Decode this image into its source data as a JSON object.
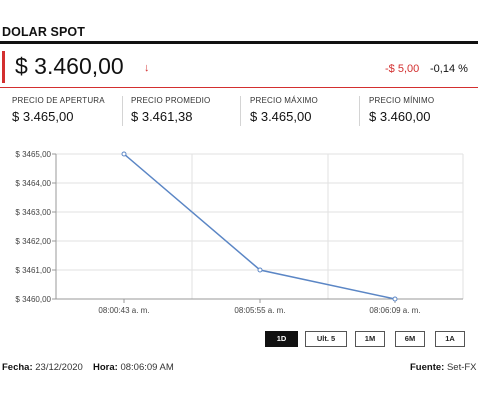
{
  "header": {
    "title": "DOLAR SPOT"
  },
  "quote": {
    "price": "$ 3.460,00",
    "arrow": "↓",
    "change": "-$ 5,00",
    "change_pct": "-0,14 %"
  },
  "stats": [
    {
      "label": "PRECIO DE APERTURA",
      "value": "$ 3.465,00"
    },
    {
      "label": "PRECIO PROMEDIO",
      "value": "$ 3.461,38"
    },
    {
      "label": "PRECIO MÁXIMO",
      "value": "$ 3.465,00"
    },
    {
      "label": "PRECIO MÍNIMO",
      "value": "$ 3.460,00"
    }
  ],
  "chart_data": {
    "type": "line",
    "x": [
      "08:00:43 a. m.",
      "08:05:55 a. m.",
      "08:06:09 a. m."
    ],
    "y": [
      3465.0,
      3461.0,
      3460.0
    ],
    "x_tick_labels": [
      "08:00:43 a. m.",
      "08:05:55 a. m.",
      "08:06:09 a. m."
    ],
    "y_tick_labels": [
      "$ 3465,00",
      "$ 3464,00",
      "$ 3463,00",
      "$ 3462,00",
      "$ 3461,00",
      "$ 3460,00"
    ],
    "ylim": [
      3460,
      3465
    ],
    "grid": true,
    "line_color": "#5b86c5"
  },
  "ranges": [
    {
      "label": "1D",
      "active": true
    },
    {
      "label": "Ult. 5",
      "active": false
    },
    {
      "label": "1M",
      "active": false
    },
    {
      "label": "6M",
      "active": false
    },
    {
      "label": "1A",
      "active": false
    }
  ],
  "footer": {
    "fecha_label": "Fecha:",
    "fecha_value": "23/12/2020",
    "hora_label": "Hora:",
    "hora_value": "08:06:09 AM",
    "fuente_label": "Fuente:",
    "fuente_value": "Set-FX"
  }
}
